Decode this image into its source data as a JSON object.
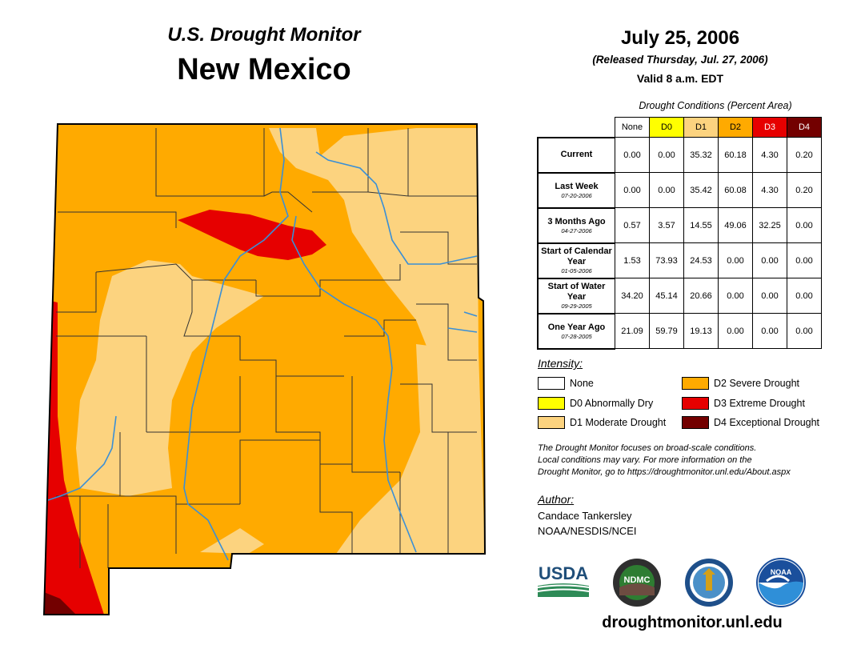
{
  "header": {
    "title_small": "U.S. Drought Monitor",
    "title_state": "New Mexico",
    "date": "July 25, 2006",
    "released": "(Released Thursday, Jul. 27, 2006)",
    "valid": "Valid 8 a.m. EDT"
  },
  "table": {
    "caption": "Drought Conditions (Percent Area)",
    "columns": [
      "None",
      "D0",
      "D1",
      "D2",
      "D3",
      "D4"
    ],
    "column_colors": [
      "#ffffff",
      "#ffff00",
      "#fcd37f",
      "#ffaa00",
      "#e60000",
      "#730000"
    ],
    "rows": [
      {
        "label": "Current",
        "date": "",
        "values": [
          "0.00",
          "0.00",
          "35.32",
          "60.18",
          "4.30",
          "0.20"
        ]
      },
      {
        "label": "Last Week",
        "date": "07-20-2006",
        "values": [
          "0.00",
          "0.00",
          "35.42",
          "60.08",
          "4.30",
          "0.20"
        ]
      },
      {
        "label": "3 Months Ago",
        "date": "04-27-2006",
        "values": [
          "0.57",
          "3.57",
          "14.55",
          "49.06",
          "32.25",
          "0.00"
        ]
      },
      {
        "label": "Start of Calendar Year",
        "date": "01-05-2006",
        "values": [
          "1.53",
          "73.93",
          "24.53",
          "0.00",
          "0.00",
          "0.00"
        ]
      },
      {
        "label": "Start of Water Year",
        "date": "09-29-2005",
        "values": [
          "34.20",
          "45.14",
          "20.66",
          "0.00",
          "0.00",
          "0.00"
        ]
      },
      {
        "label": "One Year Ago",
        "date": "07-28-2005",
        "values": [
          "21.09",
          "59.79",
          "19.13",
          "0.00",
          "0.00",
          "0.00"
        ]
      }
    ]
  },
  "legend": {
    "title": "Intensity:",
    "items": [
      {
        "label": "None",
        "color": "#ffffff"
      },
      {
        "label": "D0 Abnormally Dry",
        "color": "#ffff00"
      },
      {
        "label": "D1 Moderate Drought",
        "color": "#fcd37f"
      },
      {
        "label": "D2 Severe Drought",
        "color": "#ffaa00"
      },
      {
        "label": "D3 Extreme Drought",
        "color": "#e60000"
      },
      {
        "label": "D4 Exceptional Drought",
        "color": "#730000"
      }
    ]
  },
  "note": {
    "line1": "The Drought Monitor focuses on broad-scale conditions.",
    "line2": "Local conditions may vary. For more information on the",
    "line3": "Drought Monitor, go to https://droughtmonitor.unl.edu/About.aspx"
  },
  "author": {
    "title": "Author:",
    "name": "Candace Tankersley",
    "org": "NOAA/NESDIS/NCEI"
  },
  "logos": {
    "usda": "USDA",
    "ndmc": "NDMC",
    "noaa": "NOAA"
  },
  "website": "droughtmonitor.unl.edu",
  "colors": {
    "river": "#3a8fd6",
    "county_line": "#333333"
  }
}
